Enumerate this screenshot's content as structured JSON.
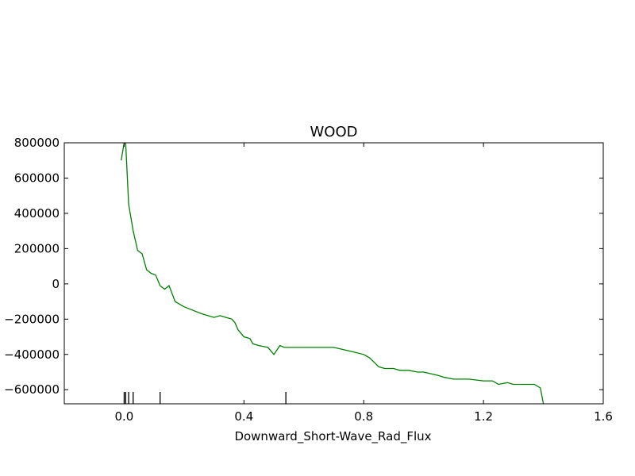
{
  "chart_data": {
    "type": "line",
    "title": "WOOD",
    "xlabel": "Downward_Short-Wave_Rad_Flux",
    "ylabel": "",
    "xlim": [
      -0.2,
      1.6
    ],
    "ylim": [
      -680000,
      800000
    ],
    "grid": false,
    "x_ticks": [
      0.0,
      0.4,
      0.8,
      1.2,
      1.6
    ],
    "x_tick_labels": [
      "0.0",
      "0.4",
      "0.8",
      "1.2",
      "1.6"
    ],
    "y_ticks": [
      800000,
      600000,
      400000,
      200000,
      0,
      -200000,
      -400000,
      -600000
    ],
    "y_tick_labels": [
      "800000",
      "600000",
      "400000",
      "200000",
      "0",
      "−200000",
      "−400000",
      "−600000"
    ],
    "series": [
      {
        "color": "#008000",
        "x": [
          -0.01,
          0.0,
          0.005,
          0.015,
          0.03,
          0.045,
          0.06,
          0.075,
          0.09,
          0.105,
          0.12,
          0.135,
          0.15,
          0.17,
          0.2,
          0.23,
          0.26,
          0.28,
          0.3,
          0.32,
          0.34,
          0.36,
          0.37,
          0.38,
          0.4,
          0.42,
          0.43,
          0.45,
          0.48,
          0.5,
          0.52,
          0.535,
          0.55,
          0.6,
          0.65,
          0.7,
          0.75,
          0.8,
          0.82,
          0.85,
          0.87,
          0.9,
          0.92,
          0.95,
          0.98,
          1.0,
          1.05,
          1.07,
          1.1,
          1.15,
          1.2,
          1.23,
          1.25,
          1.28,
          1.3,
          1.35,
          1.37,
          1.39,
          1.4
        ],
        "y": [
          700000,
          800000,
          800000,
          450000,
          300000,
          190000,
          170000,
          80000,
          60000,
          50000,
          -10000,
          -30000,
          -10000,
          -100000,
          -130000,
          -150000,
          -170000,
          -180000,
          -190000,
          -180000,
          -190000,
          -200000,
          -220000,
          -260000,
          -300000,
          -310000,
          -340000,
          -350000,
          -360000,
          -400000,
          -350000,
          -360000,
          -360000,
          -360000,
          -360000,
          -360000,
          -380000,
          -400000,
          -420000,
          -470000,
          -480000,
          -480000,
          -490000,
          -490000,
          -500000,
          -500000,
          -520000,
          -530000,
          -540000,
          -540000,
          -550000,
          -550000,
          -570000,
          -560000,
          -570000,
          -570000,
          -570000,
          -590000,
          -680000
        ]
      }
    ],
    "rug_x": [
      0.0,
      0.005,
      0.015,
      0.03,
      0.12,
      0.54
    ]
  }
}
